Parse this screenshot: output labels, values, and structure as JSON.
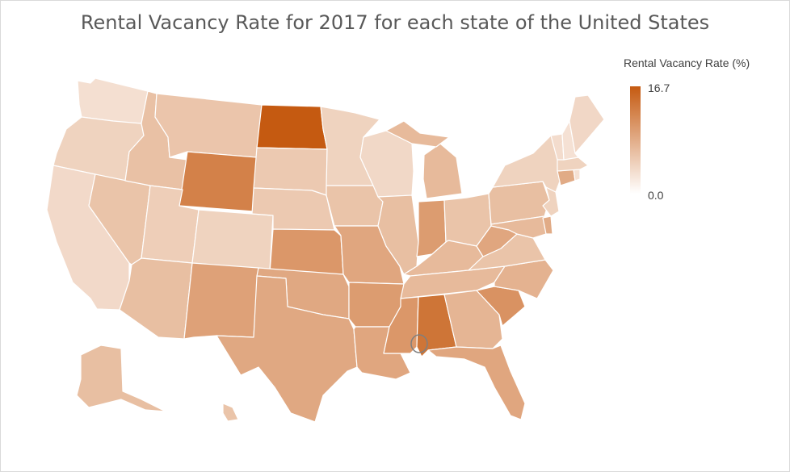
{
  "title": "Rental Vacancy Rate for 2017 for each state of the United States",
  "legend": {
    "title": "Rental Vacancy Rate (%)",
    "max_label": "16.7",
    "min_label": "0.0"
  },
  "colors": {
    "low": "#ffffff",
    "high": "#c55a11"
  },
  "states": [
    {
      "name": "Washington",
      "value": 3.2
    },
    {
      "name": "Oregon",
      "value": 4.5
    },
    {
      "name": "California",
      "value": 3.8
    },
    {
      "name": "Nevada",
      "value": 6.0
    },
    {
      "name": "Idaho",
      "value": 6.3
    },
    {
      "name": "Montana",
      "value": 5.9
    },
    {
      "name": "Wyoming",
      "value": 12.8
    },
    {
      "name": "Utah",
      "value": 5.0
    },
    {
      "name": "Arizona",
      "value": 6.5
    },
    {
      "name": "Colorado",
      "value": 4.5
    },
    {
      "name": "New Mexico",
      "value": 9.5
    },
    {
      "name": "North Dakota",
      "value": 16.7
    },
    {
      "name": "South Dakota",
      "value": 5.5
    },
    {
      "name": "Nebraska",
      "value": 5.5
    },
    {
      "name": "Kansas",
      "value": 10.5
    },
    {
      "name": "Oklahoma",
      "value": 8.8
    },
    {
      "name": "Texas",
      "value": 8.8
    },
    {
      "name": "Minnesota",
      "value": 4.5
    },
    {
      "name": "Iowa",
      "value": 6.0
    },
    {
      "name": "Missouri",
      "value": 9.0
    },
    {
      "name": "Arkansas",
      "value": 10.0
    },
    {
      "name": "Louisiana",
      "value": 9.0
    },
    {
      "name": "Wisconsin",
      "value": 3.9
    },
    {
      "name": "Illinois",
      "value": 6.5
    },
    {
      "name": "Michigan",
      "value": 7.0
    },
    {
      "name": "Indiana",
      "value": 10.0
    },
    {
      "name": "Ohio",
      "value": 6.0
    },
    {
      "name": "Kentucky",
      "value": 7.0
    },
    {
      "name": "Tennessee",
      "value": 7.0
    },
    {
      "name": "Mississippi",
      "value": 10.5
    },
    {
      "name": "Alabama",
      "value": 14.0
    },
    {
      "name": "Georgia",
      "value": 7.5
    },
    {
      "name": "Florida",
      "value": 9.0
    },
    {
      "name": "South Carolina",
      "value": 11.0
    },
    {
      "name": "North Carolina",
      "value": 7.8
    },
    {
      "name": "Virginia",
      "value": 6.0
    },
    {
      "name": "West Virginia",
      "value": 9.0
    },
    {
      "name": "Pennsylvania",
      "value": 6.5
    },
    {
      "name": "New York",
      "value": 4.5
    },
    {
      "name": "Maine",
      "value": 4.0
    },
    {
      "name": "Vermont",
      "value": 3.5
    },
    {
      "name": "New Hampshire",
      "value": 3.0
    },
    {
      "name": "Massachusetts",
      "value": 4.5
    },
    {
      "name": "Connecticut",
      "value": 8.5
    },
    {
      "name": "Rhode Island",
      "value": 3.0
    },
    {
      "name": "New Jersey",
      "value": 4.5
    },
    {
      "name": "Delaware",
      "value": 8.5
    },
    {
      "name": "Maryland",
      "value": 7.0
    },
    {
      "name": "Alaska",
      "value": 6.5
    },
    {
      "name": "Hawaii",
      "value": 6.0
    }
  ]
}
